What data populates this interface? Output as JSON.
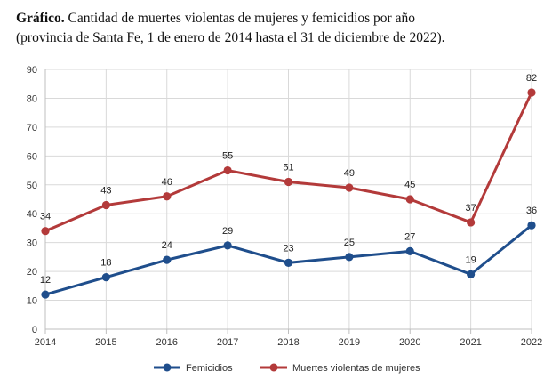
{
  "caption": {
    "bold": "Gráfico.",
    "line1": " Cantidad de muertes violentas de mujeres y femicidios por año",
    "line2": "(provincia de Santa Fe, 1 de enero de 2014 hasta el 31 de diciembre de 2022)."
  },
  "chart_data": {
    "type": "line",
    "title": "",
    "xlabel": "",
    "ylabel": "",
    "x": [
      "2014",
      "2015",
      "2016",
      "2017",
      "2018",
      "2019",
      "2020",
      "2021",
      "2022"
    ],
    "ylim": [
      0,
      90
    ],
    "yticks": [
      "0",
      "10",
      "20",
      "30",
      "40",
      "50",
      "60",
      "70",
      "80",
      "90"
    ],
    "grid": true,
    "legend_position": "bottom",
    "series": [
      {
        "name": "Femicidios",
        "color": "#1f4e8c",
        "values": [
          12,
          18,
          24,
          29,
          23,
          25,
          27,
          19,
          36
        ]
      },
      {
        "name": "Muertes violentas de mujeres",
        "color": "#b33a3a",
        "values": [
          34,
          43,
          46,
          55,
          51,
          49,
          45,
          37,
          82
        ]
      }
    ]
  }
}
